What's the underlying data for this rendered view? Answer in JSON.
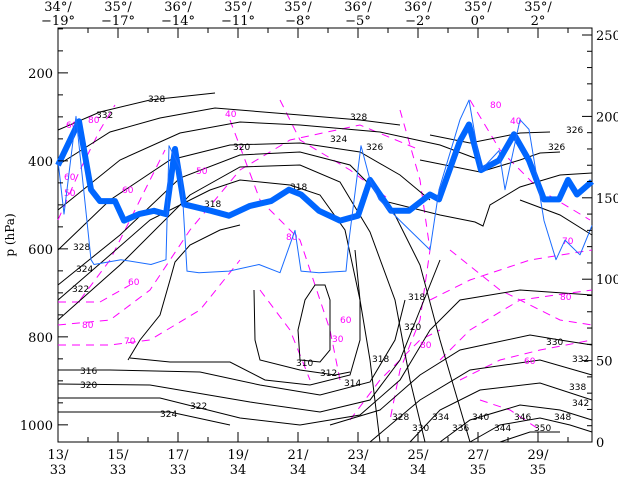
{
  "chart_data": {
    "type": "line",
    "title": "",
    "ylabel": "p (hPa)",
    "left_axis": {
      "ticks": [
        200,
        400,
        600,
        800,
        1000
      ],
      "range": [
        98,
        1039
      ],
      "inverted": true
    },
    "right_axis": {
      "ticks": [
        0,
        50,
        100,
        150,
        200,
        250
      ],
      "range": [
        0,
        250
      ]
    },
    "bottom_axis": {
      "range": [
        13,
        30.8
      ],
      "ticks": [
        13,
        15,
        17,
        19,
        21,
        23,
        25,
        27,
        29
      ],
      "labels": [
        [
          "13/",
          "33"
        ],
        [
          "15/",
          "33"
        ],
        [
          "17/",
          "33"
        ],
        [
          "19/",
          "34"
        ],
        [
          "21/",
          "34"
        ],
        [
          "23/",
          "34"
        ],
        [
          "25/",
          "34"
        ],
        [
          "27/",
          "35"
        ],
        [
          "29/",
          "35"
        ]
      ]
    },
    "top_axis": {
      "labels": [
        [
          "34°/",
          "−19°"
        ],
        [
          "35°/",
          "−17°"
        ],
        [
          "36°/",
          "−14°"
        ],
        [
          "35°/",
          "−11°"
        ],
        [
          "35°/",
          "−8°"
        ],
        [
          "36°/",
          "−5°"
        ],
        [
          "36°/",
          "−2°"
        ],
        [
          "35°/",
          "0°"
        ],
        [
          "35°/",
          "2°"
        ]
      ]
    },
    "series": [
      {
        "name": "thick-blue",
        "color": "#0066ff",
        "axis": "right",
        "points": [
          [
            13.0,
            170
          ],
          [
            13.7,
            197
          ],
          [
            14.1,
            155
          ],
          [
            14.4,
            148
          ],
          [
            14.9,
            148
          ],
          [
            15.2,
            136
          ],
          [
            15.7,
            140
          ],
          [
            16.2,
            142
          ],
          [
            16.6,
            140
          ],
          [
            16.9,
            180
          ],
          [
            17.2,
            146
          ],
          [
            18.1,
            142
          ],
          [
            18.7,
            139
          ],
          [
            19.4,
            145
          ],
          [
            20.1,
            148
          ],
          [
            20.7,
            155
          ],
          [
            21.1,
            152
          ],
          [
            21.7,
            142
          ],
          [
            22.4,
            136
          ],
          [
            23.0,
            139
          ],
          [
            23.4,
            161
          ],
          [
            24.1,
            142
          ],
          [
            24.7,
            142
          ],
          [
            25.4,
            152
          ],
          [
            25.7,
            149
          ],
          [
            26.4,
            185
          ],
          [
            26.7,
            195
          ],
          [
            27.1,
            167
          ],
          [
            27.7,
            173
          ],
          [
            28.2,
            189
          ],
          [
            28.7,
            173
          ],
          [
            29.2,
            149
          ],
          [
            29.7,
            149
          ],
          [
            30.0,
            161
          ],
          [
            30.3,
            152
          ],
          [
            30.8,
            160
          ]
        ]
      },
      {
        "name": "thin-blue",
        "color": "#1a6cff",
        "axis": "right",
        "points": [
          [
            13.0,
            173
          ],
          [
            13.2,
            140
          ],
          [
            13.6,
            200
          ],
          [
            14.1,
            112
          ],
          [
            14.2,
            109
          ],
          [
            15.1,
            112
          ],
          [
            16.1,
            109
          ],
          [
            16.6,
            112
          ],
          [
            16.7,
            182
          ],
          [
            17.1,
            167
          ],
          [
            17.3,
            105
          ],
          [
            17.7,
            104
          ],
          [
            18.7,
            105
          ],
          [
            19.7,
            109
          ],
          [
            20.4,
            104
          ],
          [
            20.9,
            130
          ],
          [
            21.1,
            105
          ],
          [
            21.7,
            104
          ],
          [
            22.6,
            105
          ],
          [
            22.7,
            124
          ],
          [
            23.1,
            182
          ],
          [
            23.4,
            161
          ],
          [
            23.7,
            149
          ],
          [
            24.4,
            136
          ],
          [
            25.4,
            118
          ],
          [
            25.7,
            155
          ],
          [
            26.4,
            198
          ],
          [
            26.7,
            210
          ],
          [
            27.1,
            167
          ],
          [
            27.7,
            179
          ],
          [
            27.9,
            155
          ],
          [
            28.4,
            198
          ],
          [
            28.7,
            192
          ],
          [
            29.2,
            136
          ],
          [
            29.6,
            112
          ],
          [
            29.9,
            124
          ],
          [
            30.4,
            115
          ],
          [
            30.8,
            133
          ]
        ]
      }
    ],
    "theta_contour_labels": [
      "332",
      "328",
      "320",
      "318",
      "318",
      "326",
      "324",
      "322",
      "316",
      "320",
      "324",
      "322",
      "310",
      "312",
      "314",
      "318",
      "320",
      "318",
      "328",
      "324",
      "326",
      "328",
      "330",
      "334",
      "336",
      "340",
      "344",
      "346",
      "350",
      "348",
      "342",
      "338",
      "332",
      "330",
      "326",
      "328"
    ],
    "rh_contour_labels": [
      "60",
      "80",
      "60",
      "50",
      "60",
      "40",
      "50",
      "60",
      "80",
      "70",
      "80",
      "40",
      "80",
      "60",
      "30",
      "70",
      "80",
      "80",
      "60"
    ]
  }
}
